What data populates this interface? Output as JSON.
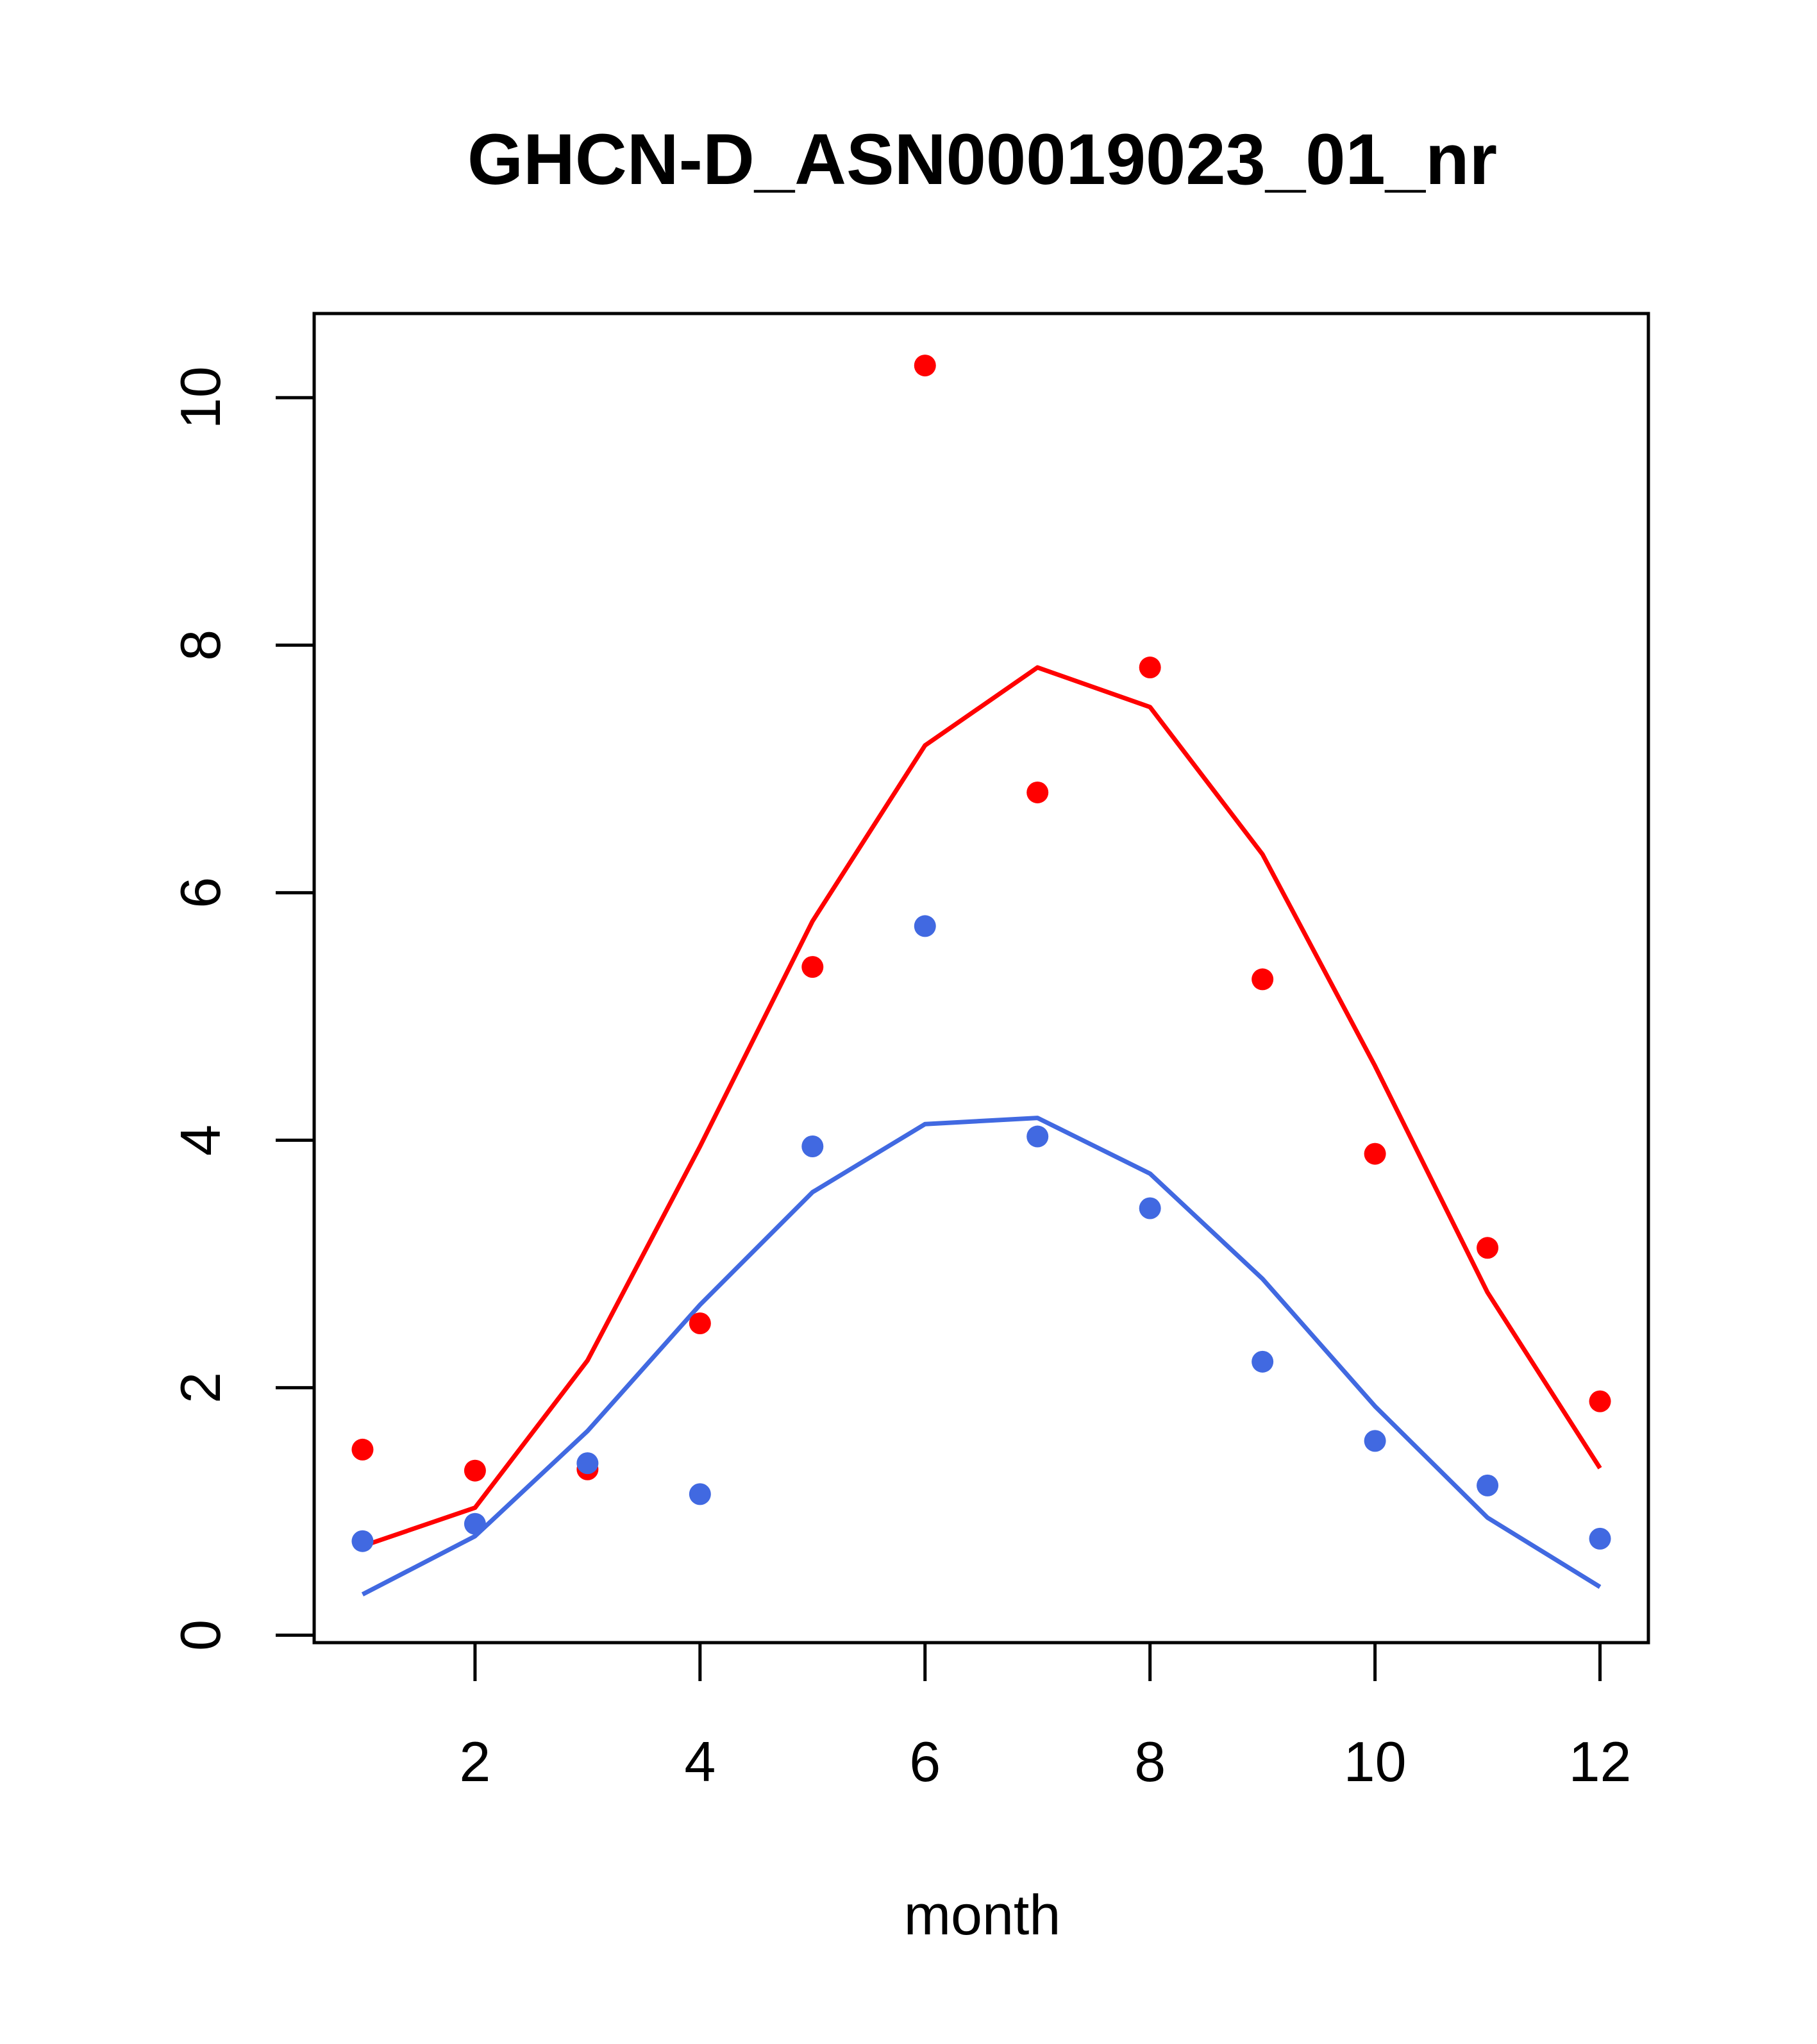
{
  "chart_data": {
    "type": "scatter",
    "title": "GHCN-D_ASN00019023_01_nr",
    "xlabel": "month",
    "ylabel": "",
    "xlim": [
      0.57,
      12.43
    ],
    "ylim": [
      -0.06,
      10.68
    ],
    "x_ticks": [
      2,
      4,
      6,
      8,
      10,
      12
    ],
    "y_ticks": [
      0,
      2,
      4,
      6,
      8,
      10
    ],
    "grid": false,
    "series": [
      {
        "kind": "points",
        "color": "#ff0000",
        "x": [
          1,
          2,
          3,
          4,
          5,
          6,
          7,
          8,
          9,
          10,
          11,
          12
        ],
        "y": [
          1.5,
          1.33,
          1.34,
          2.52,
          5.4,
          10.26,
          6.81,
          7.82,
          5.3,
          3.89,
          3.13,
          1.89
        ]
      },
      {
        "kind": "points",
        "color": "#4169e1",
        "x": [
          1,
          2,
          3,
          4,
          5,
          6,
          7,
          8,
          9,
          10,
          11,
          12
        ],
        "y": [
          0.76,
          0.9,
          1.39,
          1.14,
          3.95,
          5.73,
          4.03,
          3.45,
          2.21,
          1.57,
          1.21,
          0.78
        ]
      },
      {
        "kind": "line",
        "color": "#ff0000",
        "x": [
          1,
          2,
          3,
          4,
          5,
          6,
          7,
          8,
          9,
          10,
          11,
          12
        ],
        "y": [
          0.72,
          1.03,
          2.22,
          3.95,
          5.77,
          7.19,
          7.82,
          7.5,
          6.31,
          4.6,
          2.77,
          1.35
        ]
      },
      {
        "kind": "line",
        "color": "#4169e1",
        "x": [
          1,
          2,
          3,
          4,
          5,
          6,
          7,
          8,
          9,
          10,
          11,
          12
        ],
        "y": [
          0.33,
          0.8,
          1.65,
          2.67,
          3.58,
          4.13,
          4.18,
          3.73,
          2.88,
          1.85,
          0.95,
          0.39
        ]
      }
    ]
  }
}
